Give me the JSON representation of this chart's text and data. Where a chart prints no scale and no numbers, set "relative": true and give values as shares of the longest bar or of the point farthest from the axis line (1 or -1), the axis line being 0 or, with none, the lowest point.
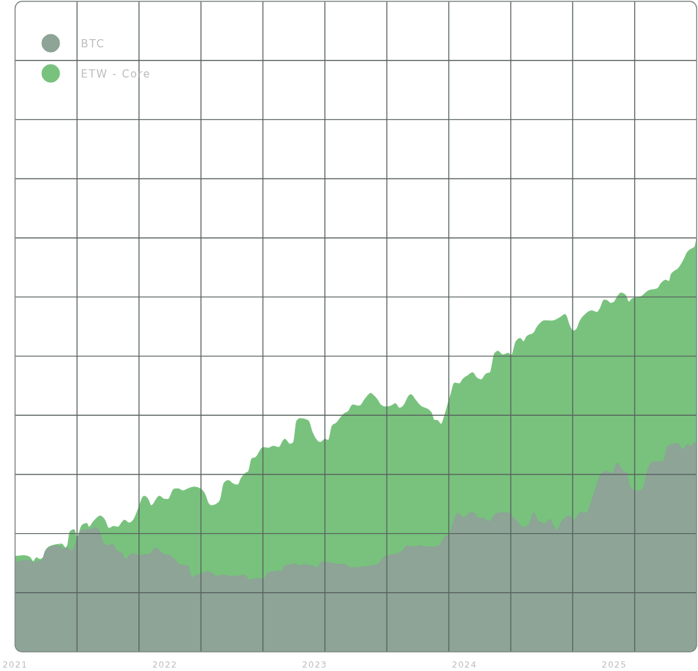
{
  "chart_data": {
    "type": "area",
    "relative": true,
    "grid": true,
    "legend": "top left",
    "xlim": [
      2021,
      2025.55
    ],
    "xticks": [
      2021,
      2022,
      2023,
      2024,
      2025
    ],
    "series": [
      {
        "name": "ETW - Core",
        "color": "#78c27d",
        "x": [
          2021.0,
          2021.058,
          2021.099,
          2021.121,
          2021.143,
          2021.166,
          2021.188,
          2021.21,
          2021.246,
          2021.313,
          2021.336,
          2021.349,
          2021.367,
          2021.394,
          2021.412,
          2021.448,
          2021.479,
          2021.493,
          2021.524,
          2021.569,
          2021.596,
          2021.627,
          2021.658,
          2021.685,
          2021.73,
          2021.761,
          2021.793,
          2021.82,
          2021.86,
          2021.887,
          2021.909,
          2021.963,
          2021.994,
          2022.021,
          2022.061,
          2022.088,
          2022.12,
          2022.155,
          2022.196,
          2022.24,
          2022.267,
          2022.29,
          2022.312,
          2022.366,
          2022.397,
          2022.424,
          2022.455,
          2022.487,
          2022.509,
          2022.536,
          2022.558,
          2022.581,
          2022.603,
          2022.657,
          2022.688,
          2022.724,
          2022.76,
          2022.8,
          2022.836,
          2022.858,
          2022.881,
          2022.903,
          2022.957,
          2022.984,
          2023.015,
          2023.038,
          2023.069,
          2023.091,
          2023.118,
          2023.141,
          2023.194,
          2023.226,
          2023.253,
          2023.297,
          2023.342,
          2023.373,
          2023.396,
          2023.418,
          2023.441,
          2023.472,
          2023.508,
          2023.539,
          2023.566,
          2023.597,
          2023.629,
          2023.642,
          2023.673,
          2023.7,
          2023.776,
          2023.799,
          2023.821,
          2023.844,
          2023.866,
          2023.888,
          2023.911,
          2023.933,
          2023.965,
          2023.991,
          2024.023,
          2024.054,
          2024.081,
          2024.112,
          2024.144,
          2024.171,
          2024.202,
          2024.224,
          2024.256,
          2024.291,
          2024.314,
          2024.345,
          2024.372,
          2024.394,
          2024.417,
          2024.462,
          2024.484,
          2024.538,
          2024.582,
          2024.636,
          2024.672,
          2024.703,
          2024.726,
          2024.748,
          2024.771,
          2024.806,
          2024.851,
          2024.883,
          2024.905,
          2024.932,
          2024.954,
          2024.977,
          2024.999,
          2025.021,
          2025.044,
          2025.075,
          2025.097,
          2025.12,
          2025.178,
          2025.232,
          2025.263,
          2025.29,
          2025.312,
          2025.344,
          2025.366,
          2025.38,
          2025.402,
          2025.424,
          2025.465,
          2025.487,
          2025.523,
          2025.536,
          2025.55
        ],
        "values": [
          0.231,
          0.233,
          0.229,
          0.219,
          0.228,
          0.224,
          0.229,
          0.249,
          0.257,
          0.261,
          0.252,
          0.257,
          0.291,
          0.296,
          0.277,
          0.307,
          0.311,
          0.302,
          0.316,
          0.329,
          0.321,
          0.299,
          0.304,
          0.302,
          0.319,
          0.312,
          0.321,
          0.344,
          0.377,
          0.37,
          0.354,
          0.377,
          0.37,
          0.369,
          0.394,
          0.395,
          0.39,
          0.395,
          0.399,
          0.394,
          0.382,
          0.36,
          0.354,
          0.365,
          0.41,
          0.415,
          0.407,
          0.404,
          0.42,
          0.432,
          0.437,
          0.468,
          0.47,
          0.495,
          0.493,
          0.498,
          0.495,
          0.515,
          0.503,
          0.507,
          0.56,
          0.565,
          0.56,
          0.532,
          0.512,
          0.507,
          0.515,
          0.512,
          0.548,
          0.553,
          0.576,
          0.583,
          0.598,
          0.595,
          0.615,
          0.626,
          0.62,
          0.611,
          0.598,
          0.593,
          0.595,
          0.601,
          0.59,
          0.598,
          0.62,
          0.623,
          0.61,
          0.598,
          0.581,
          0.561,
          0.56,
          0.551,
          0.57,
          0.598,
          0.626,
          0.651,
          0.649,
          0.661,
          0.669,
          0.676,
          0.664,
          0.659,
          0.673,
          0.676,
          0.723,
          0.728,
          0.719,
          0.723,
          0.718,
          0.752,
          0.759,
          0.751,
          0.764,
          0.772,
          0.786,
          0.802,
          0.801,
          0.809,
          0.817,
          0.789,
          0.777,
          0.781,
          0.801,
          0.817,
          0.826,
          0.822,
          0.831,
          0.852,
          0.85,
          0.844,
          0.847,
          0.86,
          0.869,
          0.864,
          0.847,
          0.855,
          0.86,
          0.875,
          0.877,
          0.88,
          0.892,
          0.9,
          0.897,
          0.914,
          0.922,
          0.927,
          0.95,
          0.967,
          0.977,
          0.98,
          1.0
        ]
      },
      {
        "name": "BTC",
        "color": "#8da497",
        "x": [
          2021.0,
          2021.058,
          2021.099,
          2021.121,
          2021.148,
          2021.179,
          2021.202,
          2021.237,
          2021.282,
          2021.305,
          2021.322,
          2021.349,
          2021.381,
          2021.394,
          2021.425,
          2021.448,
          2021.479,
          2021.515,
          2021.537,
          2021.56,
          2021.591,
          2021.618,
          2021.649,
          2021.681,
          2021.708,
          2021.743,
          2021.761,
          2021.793,
          2021.828,
          2021.864,
          2021.896,
          2021.94,
          2021.985,
          2022.03,
          2022.066,
          2022.097,
          2022.155,
          2022.178,
          2022.209,
          2022.24,
          2022.285,
          2022.312,
          2022.343,
          2022.388,
          2022.433,
          2022.478,
          2022.532,
          2022.567,
          2022.612,
          2022.657,
          2022.688,
          2022.724,
          2022.755,
          2022.778,
          2022.8,
          2022.836,
          2022.872,
          2022.894,
          2022.926,
          2022.984,
          2023.015,
          2023.051,
          2023.091,
          2023.136,
          2023.208,
          2023.239,
          2023.284,
          2023.329,
          2023.373,
          2023.418,
          2023.463,
          2023.494,
          2023.539,
          2023.584,
          2023.62,
          2023.656,
          2023.7,
          2023.745,
          2023.79,
          2023.83,
          2023.866,
          2023.902,
          2023.924,
          2023.956,
          2023.987,
          2024.009,
          2024.036,
          2024.068,
          2024.09,
          2024.121,
          2024.171,
          2024.202,
          2024.247,
          2024.291,
          2024.323,
          2024.359,
          2024.394,
          2024.435,
          2024.462,
          2024.493,
          2024.538,
          2024.569,
          2024.596,
          2024.618,
          2024.641,
          2024.703,
          2024.73,
          2024.775,
          2024.815,
          2024.842,
          2024.883,
          2024.909,
          2024.95,
          2024.986,
          2025.021,
          2025.053,
          2025.084,
          2025.097,
          2025.142,
          2025.178,
          2025.2,
          2025.223,
          2025.263,
          2025.29,
          2025.33,
          2025.357,
          2025.389,
          2025.424,
          2025.456,
          2025.492,
          2025.514,
          2025.536,
          2025.55
        ],
        "values": [
          0.216,
          0.221,
          0.221,
          0.216,
          0.219,
          0.221,
          0.244,
          0.254,
          0.257,
          0.254,
          0.249,
          0.252,
          0.244,
          0.254,
          0.282,
          0.294,
          0.296,
          0.297,
          0.302,
          0.294,
          0.262,
          0.257,
          0.261,
          0.244,
          0.241,
          0.224,
          0.233,
          0.238,
          0.233,
          0.236,
          0.236,
          0.252,
          0.238,
          0.233,
          0.224,
          0.211,
          0.208,
          0.179,
          0.186,
          0.188,
          0.194,
          0.191,
          0.183,
          0.186,
          0.183,
          0.183,
          0.186,
          0.174,
          0.178,
          0.176,
          0.191,
          0.194,
          0.196,
          0.194,
          0.208,
          0.211,
          0.213,
          0.208,
          0.211,
          0.208,
          0.204,
          0.218,
          0.216,
          0.213,
          0.211,
          0.204,
          0.204,
          0.206,
          0.208,
          0.211,
          0.229,
          0.234,
          0.236,
          0.244,
          0.257,
          0.254,
          0.257,
          0.254,
          0.254,
          0.257,
          0.277,
          0.287,
          0.311,
          0.336,
          0.327,
          0.327,
          0.337,
          0.336,
          0.324,
          0.324,
          0.316,
          0.332,
          0.337,
          0.337,
          0.327,
          0.312,
          0.301,
          0.311,
          0.336,
          0.316,
          0.311,
          0.321,
          0.304,
          0.294,
          0.311,
          0.329,
          0.319,
          0.337,
          0.336,
          0.357,
          0.404,
          0.429,
          0.437,
          0.432,
          0.457,
          0.44,
          0.432,
          0.407,
          0.39,
          0.39,
          0.404,
          0.44,
          0.46,
          0.46,
          0.462,
          0.498,
          0.502,
          0.505,
          0.49,
          0.502,
          0.498,
          0.507,
          0.498
        ]
      }
    ]
  }
}
